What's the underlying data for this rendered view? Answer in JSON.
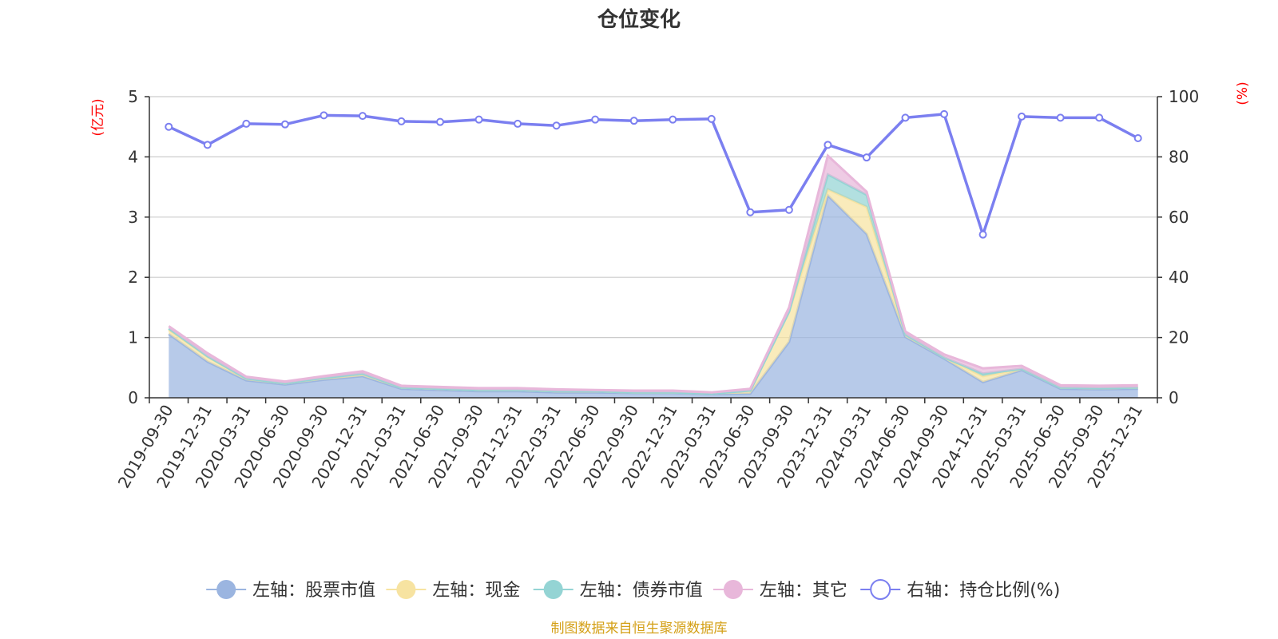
{
  "chart_data": {
    "type": "area",
    "title": "仓位变化",
    "left_axis_unit": "(亿元)",
    "right_axis_unit": "(%)",
    "ylim_left": [
      0,
      5
    ],
    "yticks_left": [
      "0",
      "1",
      "2",
      "3",
      "4",
      "5"
    ],
    "ylim_right": [
      0,
      100
    ],
    "yticks_right": [
      "0",
      "20",
      "40",
      "60",
      "80",
      "100"
    ],
    "categories": [
      "2019-09-30",
      "2019-12-31",
      "2020-03-31",
      "2020-06-30",
      "2020-09-30",
      "2020-12-31",
      "2021-03-31",
      "2021-06-30",
      "2021-09-30",
      "2021-12-31",
      "2022-03-31",
      "2022-06-30",
      "2022-09-30",
      "2022-12-31",
      "2023-03-31",
      "2023-06-30",
      "2023-09-30",
      "2023-12-31",
      "2024-03-31",
      "2024-06-30",
      "2024-09-30",
      "2024-12-31",
      "2025-03-31",
      "2025-06-30",
      "2025-09-30",
      "2025-12-31"
    ],
    "series": [
      {
        "name": "左轴：股票市值",
        "axis": "left",
        "stack": true,
        "color": "#9bb5e0",
        "values": [
          1.06,
          0.6,
          0.29,
          0.22,
          0.3,
          0.36,
          0.15,
          0.13,
          0.11,
          0.11,
          0.09,
          0.09,
          0.08,
          0.08,
          0.06,
          0.07,
          0.93,
          3.36,
          2.72,
          1.01,
          0.65,
          0.26,
          0.46,
          0.15,
          0.14,
          0.15
        ]
      },
      {
        "name": "左轴：现金",
        "axis": "left",
        "stack": true,
        "color": "#f7e3a1",
        "values": [
          0.07,
          0.08,
          0.03,
          0.02,
          0.03,
          0.04,
          0.02,
          0.02,
          0.02,
          0.02,
          0.02,
          0.02,
          0.01,
          0.01,
          0.01,
          0.05,
          0.5,
          0.1,
          0.45,
          0.04,
          0.02,
          0.1,
          0.02,
          0.02,
          0.02,
          0.02
        ]
      },
      {
        "name": "左轴：债券市值",
        "axis": "left",
        "stack": true,
        "color": "#94d4d4",
        "values": [
          0.02,
          0.01,
          0.0,
          0.0,
          0.0,
          0.0,
          0.0,
          0.0,
          0.0,
          0.0,
          0.0,
          0.0,
          0.0,
          0.0,
          0.0,
          0.0,
          0.0,
          0.25,
          0.2,
          0.0,
          0.0,
          0.04,
          0.0,
          0.0,
          0.0,
          0.0
        ]
      },
      {
        "name": "左轴：其它",
        "axis": "left",
        "stack": true,
        "color": "#e8b7da",
        "values": [
          0.04,
          0.05,
          0.03,
          0.03,
          0.03,
          0.04,
          0.03,
          0.03,
          0.03,
          0.03,
          0.03,
          0.02,
          0.03,
          0.03,
          0.02,
          0.03,
          0.07,
          0.31,
          0.05,
          0.05,
          0.05,
          0.09,
          0.05,
          0.04,
          0.04,
          0.04
        ]
      },
      {
        "name": "右轴：持仓比例(%)",
        "axis": "right",
        "stack": false,
        "color": "#7b7ff0",
        "values": [
          90,
          84,
          91,
          90.8,
          93.8,
          93.6,
          91.8,
          91.6,
          92.4,
          91,
          90.4,
          92.4,
          92,
          92.4,
          92.6,
          61.6,
          62.4,
          84,
          79.8,
          93,
          94.2,
          54.2,
          93.4,
          93,
          93,
          86.2
        ]
      }
    ]
  },
  "footer": {
    "source": "制图数据来自恒生聚源数据库"
  },
  "colors": {
    "grid": "#cccccc",
    "axis": "#333333",
    "unit_red": "#ff0000",
    "footer": "#d4a017"
  }
}
